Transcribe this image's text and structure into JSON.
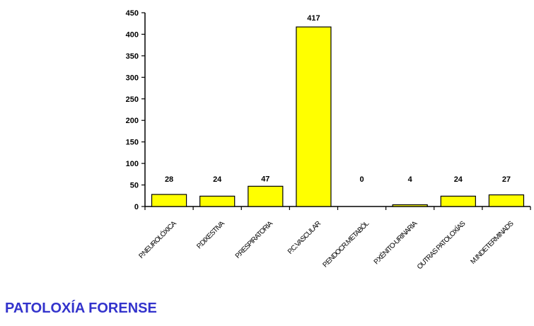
{
  "caption": "PATOLOXÍA FORENSE",
  "caption_color": "#3333cc",
  "bar_color": "#ffff00",
  "bar_stroke": "#000000",
  "chart_data": {
    "type": "bar",
    "title": "",
    "xlabel": "",
    "ylabel": "",
    "categories": [
      "P.NEUROLÓXICA",
      "P.DIXESTIVA",
      "P.RESPIRATORIA",
      "P.C.VASCULAR",
      "P.ENDOCR.METABÓL",
      "P.XÉNITO-URINARIA",
      "OUTRAS PATOLOXÍAS",
      "M.INDETERMINADS"
    ],
    "values": [
      28,
      24,
      47,
      417,
      0,
      4,
      24,
      27
    ],
    "data_labels": [
      "28",
      "24",
      "47",
      "417",
      "0",
      "4",
      "24",
      "27"
    ],
    "yticks": [
      "0",
      "50",
      "100",
      "150",
      "200",
      "250",
      "300",
      "350",
      "400",
      "450"
    ],
    "ylim": [
      0,
      450
    ],
    "grid": false,
    "legend": "none"
  }
}
